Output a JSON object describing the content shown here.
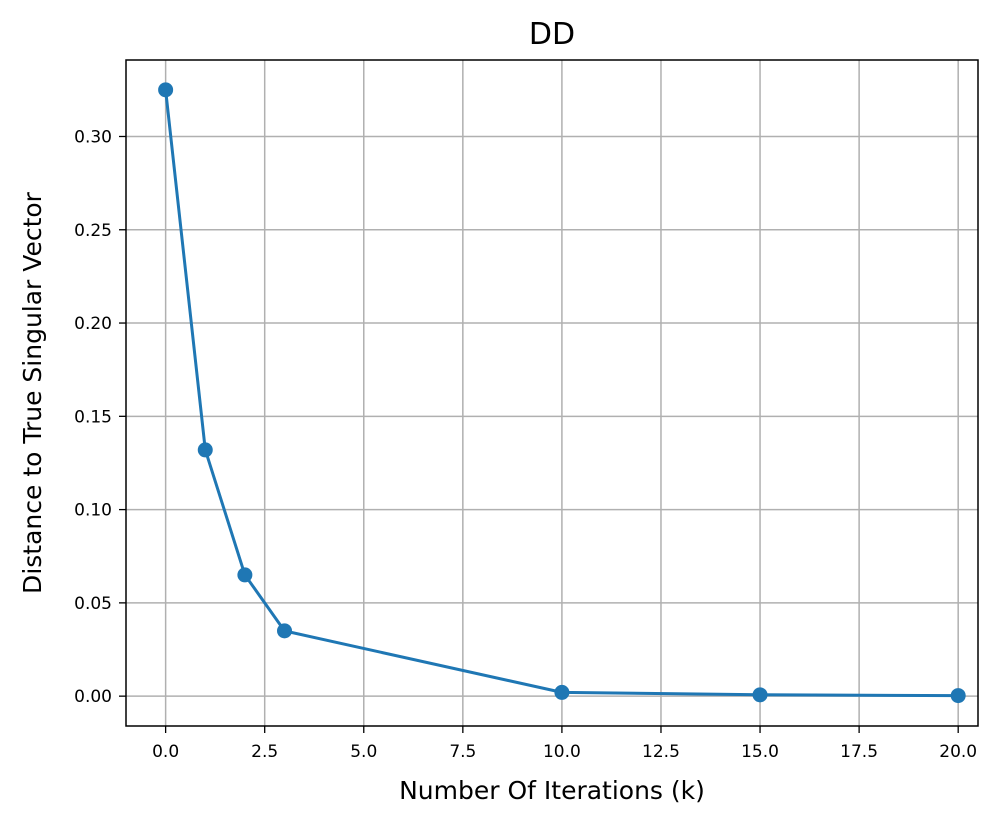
{
  "chart_data": {
    "type": "line",
    "title": "DD",
    "xlabel": "Number Of Iterations (k)",
    "ylabel": "Distance to True Singular Vector",
    "xlim": [
      -1,
      20.5
    ],
    "ylim": [
      -0.016,
      0.341
    ],
    "xticks": [
      0.0,
      2.5,
      5.0,
      7.5,
      10.0,
      12.5,
      15.0,
      17.5,
      20.0
    ],
    "xtick_labels": [
      "0.0",
      "2.5",
      "5.0",
      "7.5",
      "10.0",
      "12.5",
      "15.0",
      "17.5",
      "20.0"
    ],
    "yticks": [
      0.0,
      0.05,
      0.1,
      0.15,
      0.2,
      0.25,
      0.3
    ],
    "ytick_labels": [
      "0.00",
      "0.05",
      "0.10",
      "0.15",
      "0.20",
      "0.25",
      "0.30"
    ],
    "grid": true,
    "series": [
      {
        "color": "#1f77b4",
        "marker": "circle",
        "x": [
          0,
          1,
          2,
          3,
          10,
          15,
          20
        ],
        "y": [
          0.325,
          0.132,
          0.065,
          0.035,
          0.002,
          0.0007,
          0.0003
        ]
      }
    ]
  }
}
